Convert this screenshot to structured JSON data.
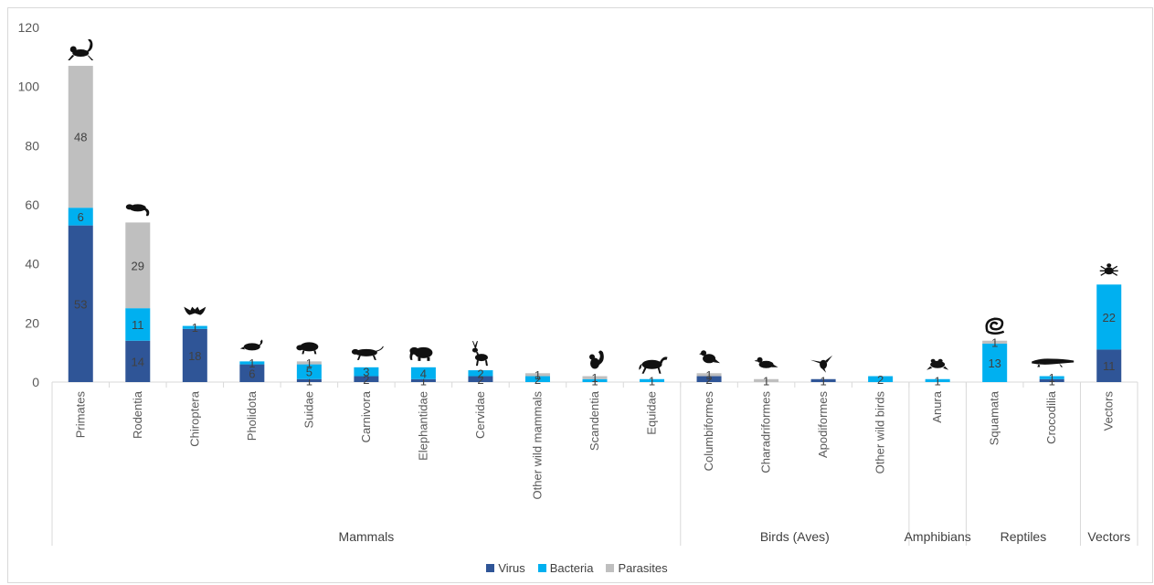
{
  "chart_data": {
    "type": "bar",
    "stacked": true,
    "ylim": [
      0,
      120
    ],
    "yticks": [
      0,
      20,
      40,
      60,
      80,
      100,
      120
    ],
    "grid": false,
    "legend_position": "bottom",
    "categories": [
      "Primates",
      "Rodentia",
      "Chiroptera",
      "Pholidota",
      "Suidae",
      "Carnivora",
      "Elephantidae",
      "Cervidae",
      "Other wild mammals",
      "Scandentia",
      "Equidae",
      "Columbiformes",
      "Charadriformes",
      "Apodiformes",
      "Other wild birds",
      "Anura",
      "Squamata",
      "Crocodilia",
      "Vectors"
    ],
    "groups": [
      {
        "label": "Mammals",
        "start": 0,
        "end": 10
      },
      {
        "label": "Birds (Aves)",
        "start": 11,
        "end": 14
      },
      {
        "label": "Amphibians",
        "start": 15,
        "end": 15
      },
      {
        "label": "Reptiles",
        "start": 16,
        "end": 17
      },
      {
        "label": "Vectors",
        "start": 18,
        "end": 18
      }
    ],
    "series": [
      {
        "name": "Virus",
        "color": "#2f5597",
        "values": [
          53,
          14,
          18,
          6,
          1,
          2,
          1,
          2,
          0,
          0,
          0,
          2,
          0,
          1,
          0,
          0,
          0,
          1,
          11
        ]
      },
      {
        "name": "Bacteria",
        "color": "#00b0f0",
        "values": [
          6,
          11,
          1,
          1,
          5,
          3,
          4,
          2,
          2,
          1,
          1,
          0,
          0,
          0,
          2,
          1,
          13,
          1,
          22
        ]
      },
      {
        "name": "Parasites",
        "color": "#bfbfbf",
        "values": [
          48,
          29,
          0,
          0,
          1,
          0,
          0,
          0,
          1,
          1,
          0,
          1,
          1,
          0,
          0,
          0,
          1,
          0,
          0
        ]
      }
    ],
    "icons": [
      "monkey-icon",
      "rat-icon",
      "bat-icon",
      "pangolin-icon",
      "boar-icon",
      "panther-icon",
      "elephant-icon",
      "deer-icon",
      "",
      "squirrel-icon",
      "horse-icon",
      "pigeon-icon",
      "gull-icon",
      "hummingbird-icon",
      "",
      "frog-icon",
      "snake-icon",
      "crocodile-icon",
      "tick-icon"
    ]
  }
}
